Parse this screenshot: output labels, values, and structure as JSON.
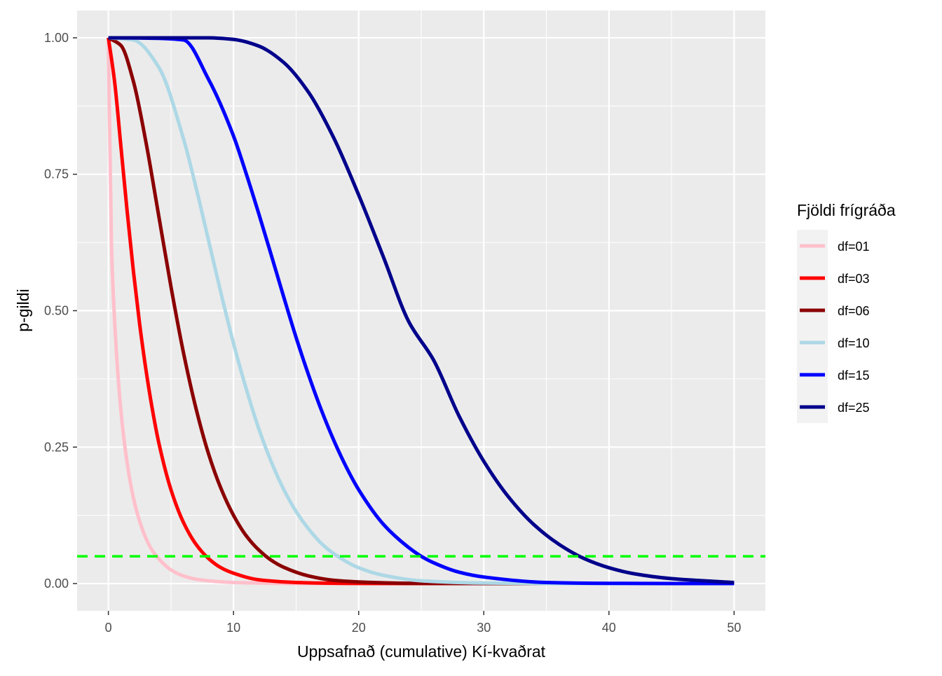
{
  "chart_data": {
    "type": "line",
    "title": "",
    "xlabel": "Uppsafnað (cumulative) Kí-kvaðrat",
    "ylabel": "p-gildi",
    "xlim": [
      -2.5,
      52.5
    ],
    "ylim": [
      -0.05,
      1.05
    ],
    "x_ticks": [
      0,
      10,
      20,
      30,
      40,
      50
    ],
    "x_tick_labels": [
      "0",
      "10",
      "20",
      "30",
      "40",
      "50"
    ],
    "y_ticks": [
      0,
      0.25,
      0.5,
      0.75,
      1
    ],
    "y_tick_labels": [
      "0.00",
      "0.25",
      "0.50",
      "0.75",
      "1.00"
    ],
    "x_minor_ticks": [
      5,
      15,
      25,
      35,
      45
    ],
    "y_minor_ticks": [
      0.125,
      0.375,
      0.625,
      0.875
    ],
    "grid": true,
    "legend": {
      "title": "Fjöldi frígráða",
      "position": "right"
    },
    "x_range": [
      0,
      50
    ],
    "series": [
      {
        "name": "df=01",
        "df": 1,
        "color": "#FFC0CB",
        "x": [
          0,
          0.25,
          0.5,
          1,
          1.5,
          2,
          2.5,
          3,
          3.5,
          4,
          5,
          6,
          7,
          8,
          10,
          12,
          15,
          20,
          30,
          50
        ],
        "y": [
          1,
          0.617,
          0.48,
          0.317,
          0.221,
          0.157,
          0.114,
          0.083,
          0.061,
          0.046,
          0.025,
          0.014,
          0.008,
          0.005,
          0.002,
          0.001,
          0.0001,
          0,
          0,
          0
        ]
      },
      {
        "name": "df=03",
        "df": 3,
        "color": "#FF0000",
        "x": [
          0,
          0.5,
          1,
          1.5,
          2,
          2.5,
          3,
          3.5,
          4,
          5,
          6,
          7,
          8,
          9,
          10,
          12,
          15,
          20,
          30,
          50
        ],
        "y": [
          1,
          0.919,
          0.801,
          0.682,
          0.572,
          0.475,
          0.392,
          0.321,
          0.261,
          0.172,
          0.112,
          0.072,
          0.046,
          0.029,
          0.019,
          0.007,
          0.002,
          0.0002,
          0,
          0
        ]
      },
      {
        "name": "df=06",
        "df": 6,
        "color": "#8B0000",
        "x": [
          0,
          1,
          2,
          3,
          4,
          5,
          6,
          7,
          8,
          9,
          10,
          11,
          12,
          13,
          14,
          16,
          18,
          20,
          25,
          30,
          40,
          50
        ],
        "y": [
          1,
          0.986,
          0.92,
          0.809,
          0.677,
          0.544,
          0.423,
          0.321,
          0.238,
          0.174,
          0.125,
          0.088,
          0.062,
          0.043,
          0.03,
          0.014,
          0.006,
          0.003,
          0.0003,
          0,
          0,
          0
        ]
      },
      {
        "name": "df=10",
        "df": 10,
        "color": "#ADD8E6",
        "x": [
          0,
          2,
          4,
          6,
          7,
          8,
          9,
          10,
          11,
          12,
          13,
          14,
          15,
          16,
          17,
          18,
          20,
          22,
          25,
          30,
          35,
          40,
          50
        ],
        "y": [
          1,
          0.996,
          0.947,
          0.815,
          0.726,
          0.629,
          0.532,
          0.44,
          0.358,
          0.285,
          0.224,
          0.173,
          0.132,
          0.1,
          0.074,
          0.055,
          0.029,
          0.015,
          0.005,
          0.001,
          0.0001,
          0,
          0
        ]
      },
      {
        "name": "df=15",
        "df": 15,
        "color": "#0000FF",
        "x": [
          0,
          4,
          6,
          8,
          10,
          11,
          12,
          13,
          14,
          15,
          16,
          17,
          18,
          19,
          20,
          22,
          24,
          25,
          26,
          28,
          30,
          35,
          40,
          45,
          50
        ],
        "y": [
          1,
          0.999,
          0.996,
          0.924,
          0.82,
          0.752,
          0.679,
          0.603,
          0.526,
          0.451,
          0.382,
          0.319,
          0.263,
          0.214,
          0.172,
          0.108,
          0.066,
          0.05,
          0.038,
          0.021,
          0.012,
          0.002,
          0.0004,
          0.0001,
          0
        ]
      },
      {
        "name": "df=25",
        "df": 25,
        "color": "#00008B",
        "x": [
          0,
          5,
          8,
          10,
          12,
          14,
          16,
          18,
          20,
          22,
          24,
          26,
          28,
          30,
          32,
          34,
          36,
          38,
          40,
          42,
          45,
          50
        ],
        "y": [
          1,
          1,
          1,
          0.997,
          0.985,
          0.955,
          0.9,
          0.817,
          0.712,
          0.597,
          0.48,
          0.409,
          0.308,
          0.224,
          0.158,
          0.108,
          0.072,
          0.046,
          0.029,
          0.018,
          0.009,
          0.002
        ]
      }
    ],
    "reference_line": {
      "y": 0.05,
      "color": "#00FF00",
      "style": "dashed"
    }
  }
}
